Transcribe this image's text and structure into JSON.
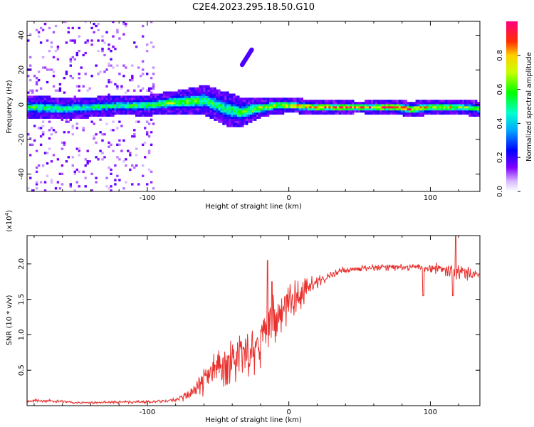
{
  "figure": {
    "title": "C2E4.2023.295.18.50.G10"
  },
  "chart_data": [
    {
      "type": "heatmap",
      "xlabel": "Height of straight line (km)",
      "ylabel": "Frequency (Hz)",
      "xlim": [
        -185,
        135
      ],
      "ylim": [
        -50,
        48
      ],
      "x_ticks": [
        -100,
        0,
        100
      ],
      "y_ticks": [
        -40,
        -20,
        0,
        20,
        40
      ],
      "colorbar": {
        "label": "Normalized spectral amplitude",
        "range": [
          0,
          1
        ],
        "ticks": [
          "0.0",
          "0.2",
          "0.4",
          "0.6",
          "0.8"
        ],
        "colormap": "rainbow (white-purple-blue-cyan-green-yellow-red-magenta)"
      },
      "features": {
        "central_band_frequency": [
          [
            -180,
            -2
          ],
          [
            -160,
            -3
          ],
          [
            -140,
            -2
          ],
          [
            -120,
            -1
          ],
          [
            -100,
            -1
          ],
          [
            -80,
            1
          ],
          [
            -60,
            2
          ],
          [
            -45,
            -3
          ],
          [
            -35,
            -5
          ],
          [
            -25,
            -3
          ],
          [
            -10,
            -1
          ],
          [
            0,
            -1
          ],
          [
            20,
            -2
          ],
          [
            40,
            -2
          ],
          [
            60,
            -2
          ],
          [
            75,
            -2
          ],
          [
            85,
            -3
          ],
          [
            100,
            -2
          ],
          [
            120,
            -2
          ],
          [
            135,
            -3
          ]
        ],
        "band_width_hz": [
          [
            -180,
            3
          ],
          [
            -120,
            2.5
          ],
          [
            -80,
            3
          ],
          [
            -60,
            4
          ],
          [
            -40,
            4.5
          ],
          [
            -20,
            2.5
          ],
          [
            0,
            2
          ],
          [
            50,
            1.6
          ],
          [
            80,
            2
          ],
          [
            135,
            2
          ]
        ],
        "band_amplitude": [
          [
            -180,
            0.55
          ],
          [
            -150,
            0.5
          ],
          [
            -100,
            0.55
          ],
          [
            -80,
            0.65
          ],
          [
            -60,
            0.55
          ],
          [
            -40,
            0.5
          ],
          [
            -20,
            0.7
          ],
          [
            0,
            0.75
          ],
          [
            20,
            0.85
          ],
          [
            40,
            0.9
          ],
          [
            60,
            0.85
          ],
          [
            80,
            0.9
          ],
          [
            100,
            0.75
          ],
          [
            120,
            0.7
          ],
          [
            135,
            0.55
          ]
        ],
        "spur": {
          "x_start": -33,
          "y_start": 23,
          "x_end": -26,
          "y_end": 32
        },
        "noisy_region_x": [
          -185,
          -95
        ]
      }
    },
    {
      "type": "line",
      "xlabel": "Height of straight line (km)",
      "ylabel": "SNR (10 * v/v)",
      "y_multiplier": "(x10",
      "y_multiplier_exp": "4",
      "y_multiplier_close": ")",
      "xlim": [
        -185,
        135
      ],
      "ylim": [
        0,
        2.4
      ],
      "x_ticks": [
        -100,
        0,
        100
      ],
      "y_ticks": [
        "0.5",
        "1.0",
        "1.5",
        "2.0"
      ],
      "series": [
        {
          "color": "#e8312e",
          "trend": [
            [
              -185,
              0.07
            ],
            [
              -170,
              0.07
            ],
            [
              -150,
              0.04
            ],
            [
              -120,
              0.05
            ],
            [
              -100,
              0.05
            ],
            [
              -80,
              0.08
            ],
            [
              -70,
              0.15
            ],
            [
              -60,
              0.35
            ],
            [
              -50,
              0.5
            ],
            [
              -40,
              0.6
            ],
            [
              -30,
              0.7
            ],
            [
              -20,
              0.95
            ],
            [
              -10,
              1.25
            ],
            [
              0,
              1.45
            ],
            [
              10,
              1.6
            ],
            [
              20,
              1.75
            ],
            [
              30,
              1.85
            ],
            [
              40,
              1.92
            ],
            [
              50,
              1.93
            ],
            [
              60,
              1.95
            ],
            [
              80,
              1.95
            ],
            [
              100,
              1.95
            ],
            [
              110,
              1.93
            ],
            [
              120,
              1.88
            ],
            [
              135,
              1.85
            ]
          ],
          "noise_amplitude": [
            [
              -185,
              0.02
            ],
            [
              -90,
              0.02
            ],
            [
              -80,
              0.03
            ],
            [
              -70,
              0.1
            ],
            [
              -60,
              0.25
            ],
            [
              -40,
              0.35
            ],
            [
              -20,
              0.45
            ],
            [
              0,
              0.3
            ],
            [
              15,
              0.15
            ],
            [
              30,
              0.05
            ],
            [
              90,
              0.05
            ],
            [
              110,
              0.1
            ],
            [
              125,
              0.12
            ],
            [
              135,
              0.03
            ]
          ],
          "spikes": [
            [
              -15,
              2.05
            ],
            [
              -12,
              1.75
            ],
            [
              95,
              1.55
            ],
            [
              118,
              2.45
            ],
            [
              116,
              1.55
            ]
          ]
        }
      ]
    }
  ]
}
